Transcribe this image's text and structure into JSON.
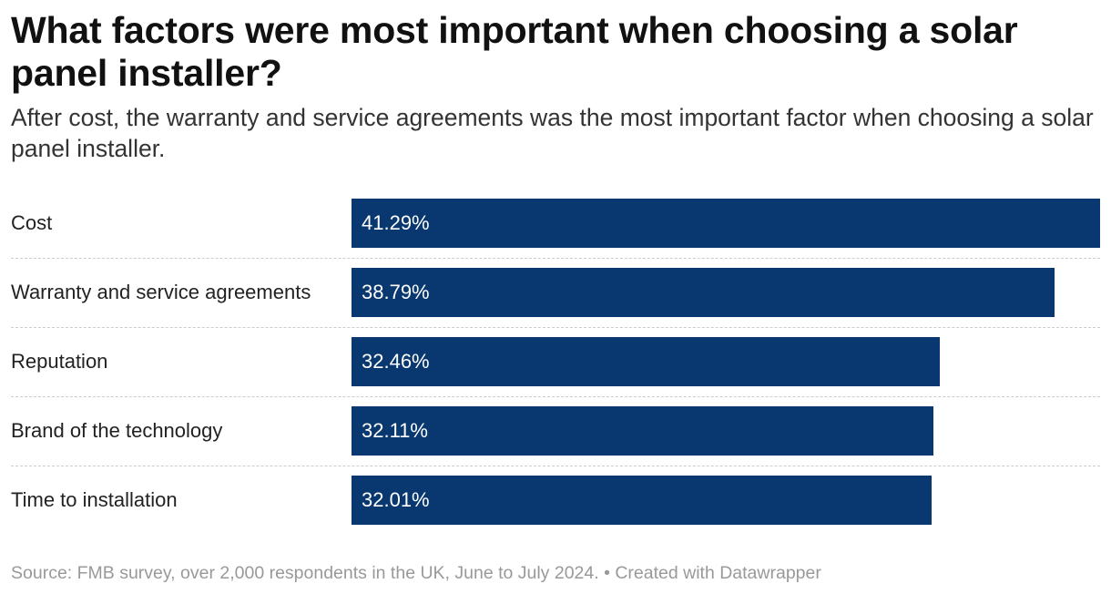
{
  "title": "What factors were most important when choosing a solar panel installer?",
  "subtitle": "After cost, the warranty and service agreements was the most important factor when choosing a solar panel installer.",
  "footer": {
    "source": "Source: FMB survey, over 2,000 respondents in the UK, June to July 2024.",
    "separator": "•",
    "credit": "Created with Datawrapper"
  },
  "colors": {
    "bar": "#08386f",
    "label_text": "#ffffff",
    "separator": "#cccccc"
  },
  "chart_data": {
    "type": "bar",
    "orientation": "horizontal",
    "categories": [
      "Cost",
      "Warranty and service agreements",
      "Reputation",
      "Brand of the technology",
      "Time to installation"
    ],
    "values": [
      41.29,
      38.79,
      32.46,
      32.11,
      32.01
    ],
    "value_labels": [
      "41.29%",
      "38.79%",
      "32.46%",
      "32.11%",
      "32.01%"
    ],
    "xlim": [
      0,
      41.29
    ],
    "grid": false,
    "legend": "none"
  }
}
